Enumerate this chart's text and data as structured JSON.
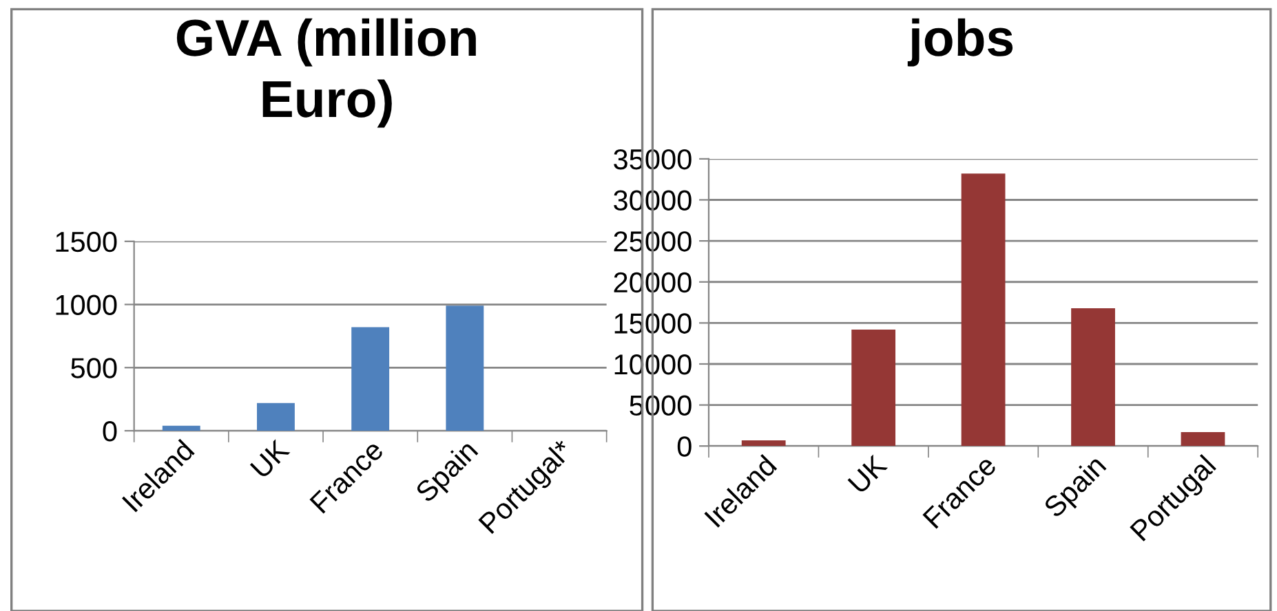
{
  "chart_data": [
    {
      "type": "bar",
      "title": "GVA (million\nEuro)",
      "categories": [
        "Ireland",
        "UK",
        "France",
        "Spain",
        "Portugal*"
      ],
      "values": [
        40,
        220,
        820,
        990,
        null
      ],
      "color": "#4f81bd",
      "ylim": [
        0,
        1500
      ],
      "yticks": [
        0,
        500,
        1000,
        1500
      ],
      "grid": "y"
    },
    {
      "type": "bar",
      "title": "jobs",
      "categories": [
        "Ireland",
        "UK",
        "France",
        "Spain",
        "Portugal"
      ],
      "values": [
        700,
        14200,
        33200,
        16800,
        1700
      ],
      "color": "#953735",
      "ylim": [
        0,
        35000
      ],
      "yticks": [
        0,
        5000,
        10000,
        15000,
        20000,
        25000,
        30000,
        35000
      ],
      "grid": "y"
    }
  ]
}
